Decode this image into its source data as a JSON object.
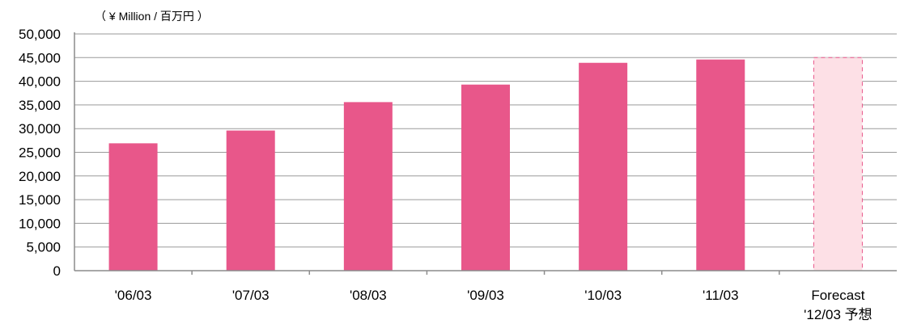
{
  "chart_data": {
    "type": "bar",
    "unit_label": "（ ¥ Million / 百万円 ）",
    "categories": [
      "'06/03",
      "'07/03",
      "'08/03",
      "'09/03",
      "'10/03",
      "'11/03",
      [
        "Forecast",
        "'12/03 予想"
      ]
    ],
    "values": [
      26900,
      29600,
      35600,
      39300,
      43900,
      44600,
      45000
    ],
    "forecast_index": 6,
    "ylim": [
      0,
      50000
    ],
    "yticks": [
      "0",
      "5,000",
      "10,000",
      "15,000",
      "20,000",
      "25,000",
      "30,000",
      "35,000",
      "40,000",
      "45,000",
      "50,000"
    ],
    "grid": true,
    "colors": {
      "bar": "#e8578a",
      "forecast_fill": "#fde0e6",
      "forecast_border": "#e8578a",
      "grid": "#9a9a9a",
      "axis": "#8c8c8c"
    }
  }
}
